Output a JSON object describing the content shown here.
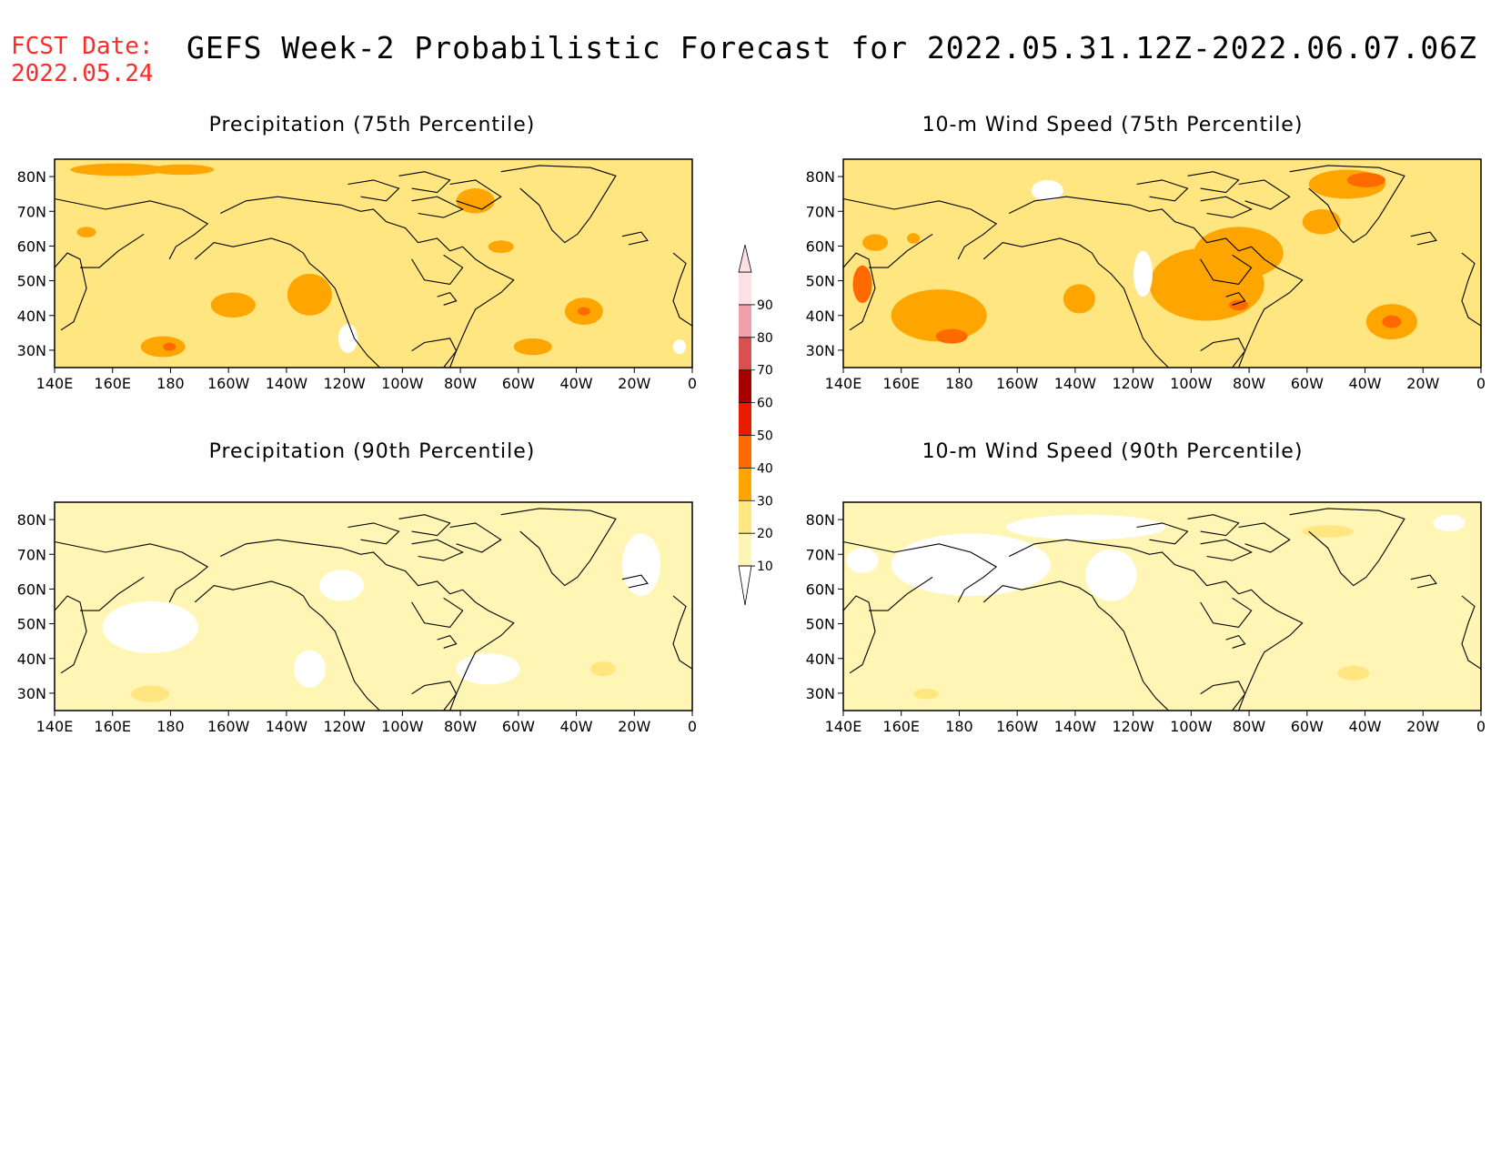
{
  "header": {
    "fcst_label": "FCST Date:",
    "fcst_date": "2022.05.24",
    "title": "GEFS Week-2 Probabilistic Forecast for 2022.05.31.12Z-2022.06.07.06Z"
  },
  "panels": [
    {
      "id": "precip75",
      "title": "Precipitation (75th Percentile)"
    },
    {
      "id": "wind75",
      "title": "10-m Wind Speed (75th Percentile)"
    },
    {
      "id": "precip90",
      "title": "Precipitation (90th Percentile)"
    },
    {
      "id": "wind90",
      "title": "10-m Wind Speed (90th Percentile)"
    }
  ],
  "axes": {
    "lon_ticks": [
      "140E",
      "160E",
      "180",
      "160W",
      "140W",
      "120W",
      "100W",
      "80W",
      "60W",
      "40W",
      "20W",
      "0"
    ],
    "lat_ticks": [
      "80N",
      "70N",
      "60N",
      "50N",
      "40N",
      "30N"
    ]
  },
  "colorbar": {
    "levels": [
      "10",
      "20",
      "30",
      "40",
      "50",
      "60",
      "70",
      "80",
      "90"
    ],
    "colors": [
      "#fff5b4",
      "#ffe680",
      "#ffa500",
      "#ff6a00",
      "#e81a00",
      "#a80000",
      "#d85050",
      "#f0a0a8",
      "#fde0e4"
    ]
  }
}
